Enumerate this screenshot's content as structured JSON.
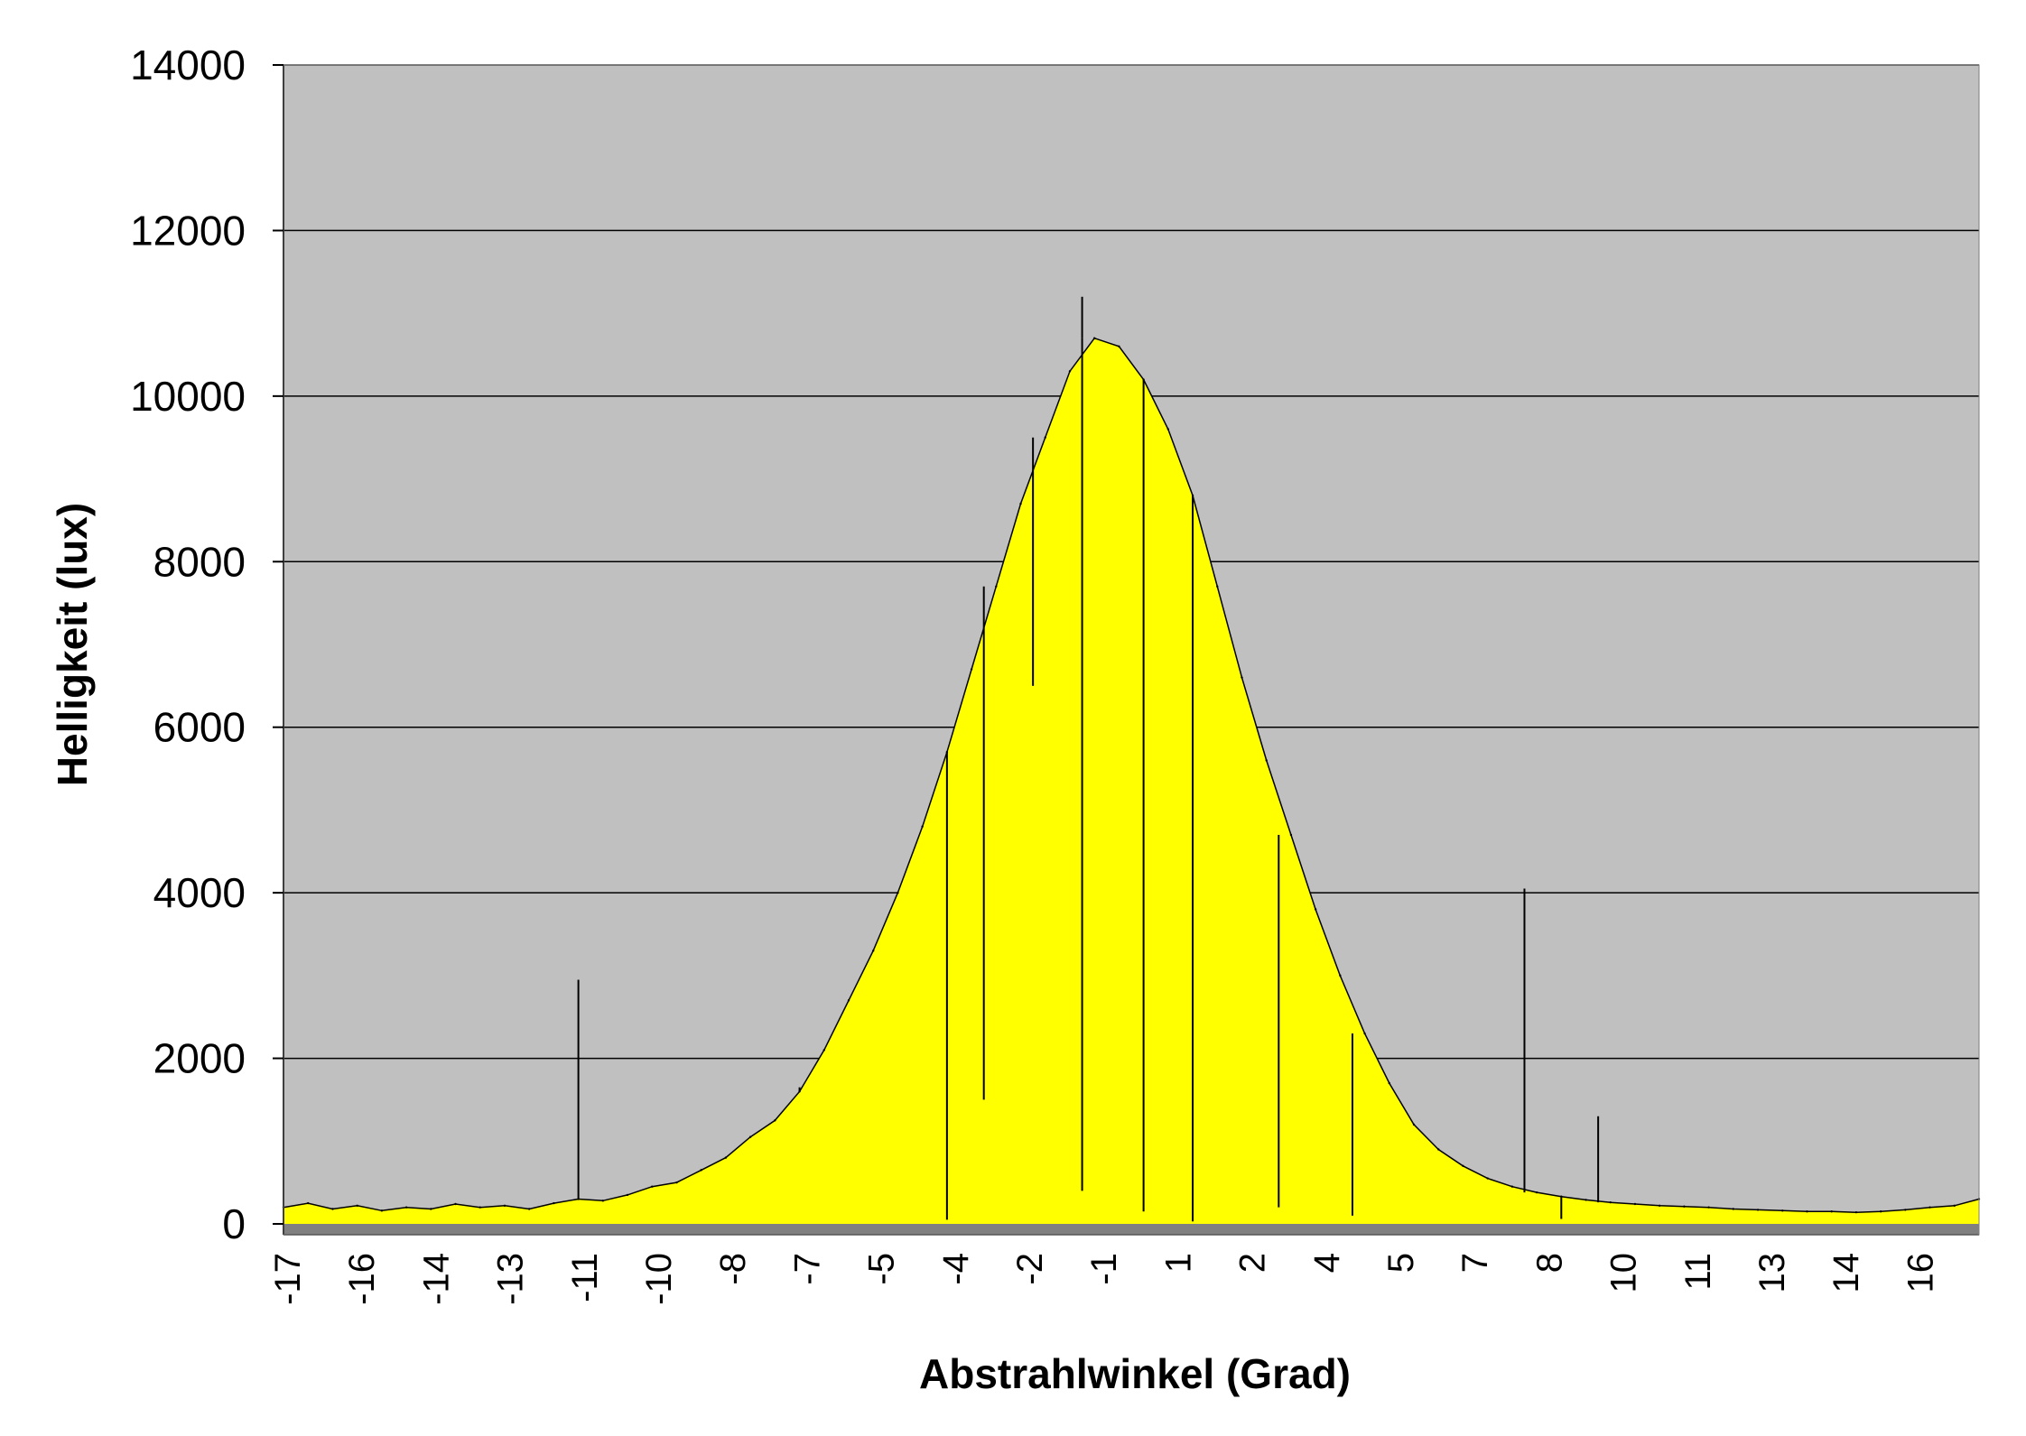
{
  "chart_data": {
    "type": "area",
    "title": "",
    "xlabel": "Abstrahlwinkel (Grad)",
    "ylabel": "Helligkeit (lux)",
    "ylim": [
      0,
      14000
    ],
    "yticks": [
      "0",
      "2000",
      "4000",
      "6000",
      "8000",
      "10000",
      "12000",
      "14000"
    ],
    "xlim": [
      -17,
      17.5
    ],
    "xticks": [
      "-17",
      "-16",
      "-14",
      "-13",
      "-11",
      "-10",
      "-8",
      "-7",
      "-5",
      "-4",
      "-2",
      "-1",
      "1",
      "2",
      "4",
      "5",
      "7",
      "8",
      "10",
      "11",
      "13",
      "14",
      "16"
    ],
    "grid": true,
    "legend": "none",
    "colors": {
      "plot_background": "#c0c0c0",
      "fill": "#ffff00",
      "line": "#000000",
      "gridline": "#000000",
      "floor": "#808080"
    },
    "series": [
      {
        "x": [
          -17.0,
          -16.5,
          -16.0,
          -15.5,
          -15.0,
          -14.5,
          -14.0,
          -13.5,
          -13.0,
          -12.5,
          -12.0,
          -11.5,
          -11.0,
          -10.5,
          -10.0,
          -9.5,
          -9.0,
          -8.5,
          -8.0,
          -7.5,
          -7.0,
          -6.5,
          -6.0,
          -5.5,
          -5.0,
          -4.5,
          -4.0,
          -3.5,
          -3.0,
          -2.5,
          -2.0,
          -1.5,
          -1.0,
          -0.5,
          0.0,
          0.5,
          1.0,
          1.5,
          2.0,
          2.5,
          3.0,
          3.5,
          4.0,
          4.5,
          5.0,
          5.5,
          6.0,
          6.5,
          7.0,
          7.5,
          8.0,
          8.5,
          9.0,
          9.5,
          10.0,
          10.5,
          11.0,
          11.5,
          12.0,
          12.5,
          13.0,
          13.5,
          14.0,
          14.5,
          15.0,
          15.5,
          16.0,
          16.5,
          17.0,
          17.5
        ],
        "values": [
          200,
          250,
          180,
          220,
          160,
          200,
          180,
          240,
          200,
          220,
          180,
          250,
          300,
          280,
          350,
          450,
          500,
          650,
          800,
          1050,
          1250,
          1600,
          2100,
          2700,
          3300,
          4000,
          4800,
          5700,
          6700,
          7700,
          8700,
          9500,
          10300,
          10700,
          10600,
          10200,
          9600,
          8800,
          7700,
          6600,
          5600,
          4700,
          3800,
          3000,
          2300,
          1700,
          1200,
          900,
          700,
          550,
          450,
          380,
          330,
          290,
          260,
          240,
          220,
          210,
          200,
          180,
          170,
          160,
          150,
          150,
          140,
          150,
          170,
          200,
          220,
          300
        ],
        "spikes": [
          {
            "x": -11.0,
            "value": 2950
          },
          {
            "x": -6.5,
            "value": 1650
          },
          {
            "x": -3.5,
            "value": 50
          },
          {
            "x": -2.75,
            "value": 1500
          },
          {
            "x": -1.75,
            "value": 6500
          },
          {
            "x": -0.75,
            "value": 11200
          },
          {
            "x": -0.75,
            "value": 400
          },
          {
            "x": 0.5,
            "value": 150
          },
          {
            "x": 1.5,
            "value": 30
          },
          {
            "x": 3.25,
            "value": 200
          },
          {
            "x": 4.75,
            "value": 100
          },
          {
            "x": 8.25,
            "value": 4050
          },
          {
            "x": 9.0,
            "value": 60
          },
          {
            "x": 9.75,
            "value": 1300
          }
        ]
      }
    ]
  }
}
